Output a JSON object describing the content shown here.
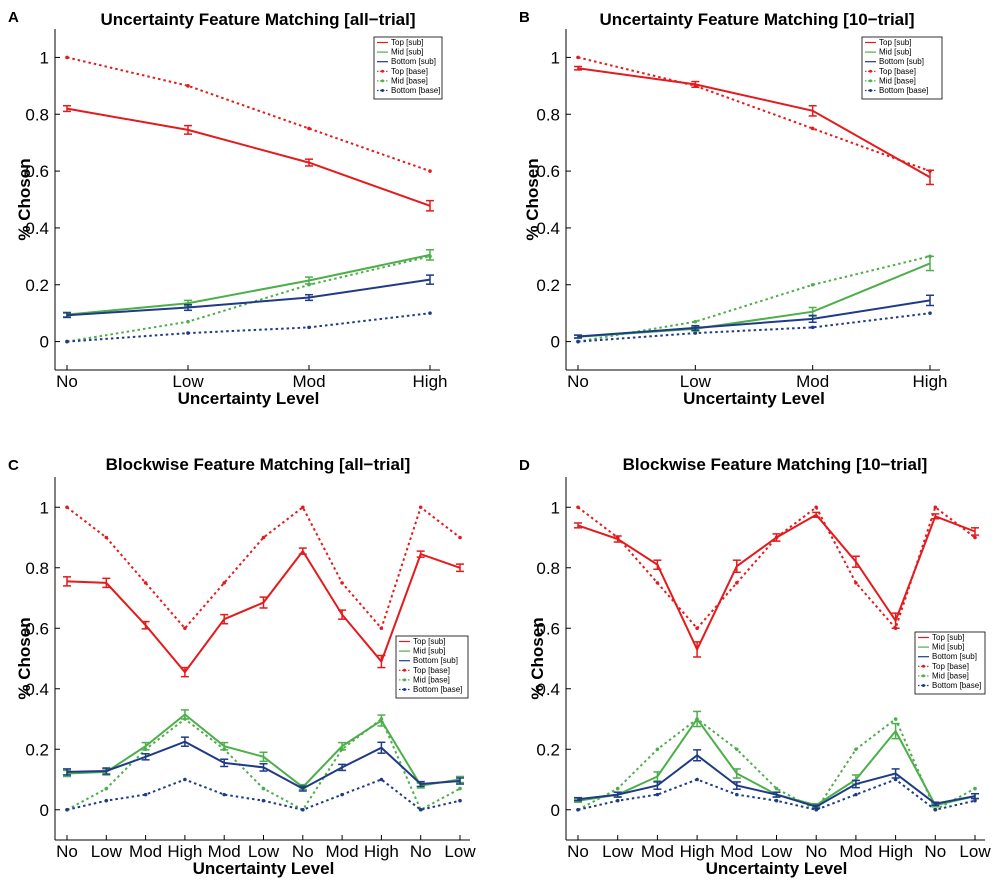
{
  "chart_data": [
    {
      "panel": "A",
      "type": "line",
      "title": "Uncertainty Feature Matching [all−trial]",
      "xlabel": "Uncertainty Level",
      "ylabel": "% Chosen",
      "categories": [
        "No",
        "Low",
        "Mod",
        "High"
      ],
      "yticks": [
        "0",
        "0.2",
        "0.4",
        "0.6",
        "0.8",
        "1"
      ],
      "ylim": [
        -0.1,
        1.1
      ],
      "legend_position": "top-right",
      "series": [
        {
          "name": "Top [sub]",
          "color": "#e41a1c",
          "style": "solid",
          "values": [
            0.82,
            0.745,
            0.63,
            0.478
          ],
          "errors": [
            0.01,
            0.015,
            0.012,
            0.018
          ]
        },
        {
          "name": "Mid [sub]",
          "color": "#4daf4a",
          "style": "solid",
          "values": [
            0.095,
            0.135,
            0.215,
            0.305
          ],
          "errors": [
            0.008,
            0.01,
            0.012,
            0.018
          ]
        },
        {
          "name": "Bottom [sub]",
          "color": "#1f3b87",
          "style": "solid",
          "values": [
            0.093,
            0.12,
            0.155,
            0.218
          ],
          "errors": [
            0.008,
            0.01,
            0.01,
            0.016
          ]
        },
        {
          "name": "Top [base]",
          "color": "#e41a1c",
          "style": "dotted",
          "values": [
            1.0,
            0.9,
            0.75,
            0.6
          ]
        },
        {
          "name": "Mid [base]",
          "color": "#4daf4a",
          "style": "dotted",
          "values": [
            0.0,
            0.07,
            0.2,
            0.3
          ]
        },
        {
          "name": "Bottom [base]",
          "color": "#1f3b87",
          "style": "dotted",
          "values": [
            0.0,
            0.03,
            0.05,
            0.1
          ]
        }
      ]
    },
    {
      "panel": "B",
      "type": "line",
      "title": "Uncertainty Feature Matching [10−trial]",
      "xlabel": "Uncertainty Level",
      "ylabel": "% Chosen",
      "categories": [
        "No",
        "Low",
        "Mod",
        "High"
      ],
      "yticks": [
        "0",
        "0.2",
        "0.4",
        "0.6",
        "0.8",
        "1"
      ],
      "ylim": [
        -0.1,
        1.1
      ],
      "legend_position": "top-right",
      "series": [
        {
          "name": "Top [sub]",
          "color": "#e41a1c",
          "style": "solid",
          "values": [
            0.962,
            0.905,
            0.812,
            0.578
          ],
          "errors": [
            0.006,
            0.01,
            0.018,
            0.025
          ]
        },
        {
          "name": "Mid [sub]",
          "color": "#4daf4a",
          "style": "solid",
          "values": [
            0.017,
            0.045,
            0.105,
            0.275
          ],
          "errors": [
            0.005,
            0.008,
            0.015,
            0.025
          ]
        },
        {
          "name": "Bottom [sub]",
          "color": "#1f3b87",
          "style": "solid",
          "values": [
            0.018,
            0.048,
            0.08,
            0.145
          ],
          "errors": [
            0.005,
            0.008,
            0.012,
            0.018
          ]
        },
        {
          "name": "Top [base]",
          "color": "#e41a1c",
          "style": "dotted",
          "values": [
            1.0,
            0.9,
            0.75,
            0.6
          ]
        },
        {
          "name": "Mid [base]",
          "color": "#4daf4a",
          "style": "dotted",
          "values": [
            0.0,
            0.07,
            0.2,
            0.3
          ]
        },
        {
          "name": "Bottom [base]",
          "color": "#1f3b87",
          "style": "dotted",
          "values": [
            0.0,
            0.03,
            0.05,
            0.1
          ]
        }
      ]
    },
    {
      "panel": "C",
      "type": "line",
      "title": "Blockwise Feature Matching [all−trial]",
      "xlabel": "Uncertainty Level",
      "ylabel": "% Chosen",
      "categories": [
        "No",
        "Low",
        "Mod",
        "High",
        "Mod",
        "Low",
        "No",
        "Mod",
        "High",
        "No",
        "Low"
      ],
      "yticks": [
        "0",
        "0.2",
        "0.4",
        "0.6",
        "0.8",
        "1"
      ],
      "ylim": [
        -0.1,
        1.1
      ],
      "legend_position": "center-right",
      "series": [
        {
          "name": "Top [sub]",
          "color": "#e41a1c",
          "style": "solid",
          "values": [
            0.755,
            0.75,
            0.61,
            0.455,
            0.63,
            0.685,
            0.855,
            0.645,
            0.49,
            0.845,
            0.8
          ],
          "errors": [
            0.015,
            0.015,
            0.012,
            0.015,
            0.015,
            0.018,
            0.01,
            0.015,
            0.02,
            0.01,
            0.012
          ]
        },
        {
          "name": "Mid [sub]",
          "color": "#4daf4a",
          "style": "solid",
          "values": [
            0.12,
            0.125,
            0.21,
            0.315,
            0.21,
            0.175,
            0.075,
            0.21,
            0.295,
            0.08,
            0.1
          ],
          "errors": [
            0.01,
            0.01,
            0.012,
            0.015,
            0.012,
            0.015,
            0.008,
            0.012,
            0.018,
            0.008,
            0.01
          ]
        },
        {
          "name": "Bottom [sub]",
          "color": "#1f3b87",
          "style": "solid",
          "values": [
            0.125,
            0.128,
            0.175,
            0.225,
            0.155,
            0.14,
            0.07,
            0.14,
            0.205,
            0.085,
            0.095
          ],
          "errors": [
            0.01,
            0.01,
            0.01,
            0.015,
            0.012,
            0.012,
            0.008,
            0.01,
            0.018,
            0.008,
            0.01
          ]
        },
        {
          "name": "Top [base]",
          "color": "#e41a1c",
          "style": "dotted",
          "values": [
            1.0,
            0.9,
            0.75,
            0.6,
            0.75,
            0.9,
            1.0,
            0.75,
            0.6,
            1.0,
            0.9
          ]
        },
        {
          "name": "Mid [base]",
          "color": "#4daf4a",
          "style": "dotted",
          "values": [
            0.0,
            0.07,
            0.2,
            0.3,
            0.2,
            0.07,
            0.0,
            0.2,
            0.3,
            0.0,
            0.07
          ]
        },
        {
          "name": "Bottom [base]",
          "color": "#1f3b87",
          "style": "dotted",
          "values": [
            0.0,
            0.03,
            0.05,
            0.1,
            0.05,
            0.03,
            0.0,
            0.05,
            0.1,
            0.0,
            0.03
          ]
        }
      ]
    },
    {
      "panel": "D",
      "type": "line",
      "title": "Blockwise Feature Matching [10−trial]",
      "xlabel": "Uncertainty Level",
      "ylabel": "% Chosen",
      "categories": [
        "No",
        "Low",
        "Mod",
        "High",
        "Mod",
        "Low",
        "No",
        "Mod",
        "High",
        "No",
        "Low"
      ],
      "yticks": [
        "0",
        "0.2",
        "0.4",
        "0.6",
        "0.8",
        "1"
      ],
      "ylim": [
        -0.1,
        1.1
      ],
      "legend_position": "center-right",
      "series": [
        {
          "name": "Top [sub]",
          "color": "#e41a1c",
          "style": "solid",
          "values": [
            0.94,
            0.895,
            0.81,
            0.53,
            0.805,
            0.9,
            0.975,
            0.82,
            0.625,
            0.97,
            0.92
          ],
          "errors": [
            0.008,
            0.01,
            0.015,
            0.025,
            0.02,
            0.012,
            0.008,
            0.018,
            0.025,
            0.008,
            0.012
          ]
        },
        {
          "name": "Mid [sub]",
          "color": "#4daf4a",
          "style": "solid",
          "values": [
            0.03,
            0.05,
            0.11,
            0.3,
            0.12,
            0.05,
            0.015,
            0.1,
            0.26,
            0.015,
            0.045
          ],
          "errors": [
            0.005,
            0.008,
            0.015,
            0.025,
            0.015,
            0.008,
            0.005,
            0.015,
            0.025,
            0.005,
            0.008
          ]
        },
        {
          "name": "Bottom [sub]",
          "color": "#1f3b87",
          "style": "solid",
          "values": [
            0.035,
            0.05,
            0.08,
            0.18,
            0.08,
            0.05,
            0.01,
            0.085,
            0.12,
            0.02,
            0.045
          ],
          "errors": [
            0.005,
            0.008,
            0.012,
            0.018,
            0.012,
            0.008,
            0.005,
            0.012,
            0.015,
            0.005,
            0.008
          ]
        },
        {
          "name": "Top [base]",
          "color": "#e41a1c",
          "style": "dotted",
          "values": [
            1.0,
            0.9,
            0.75,
            0.6,
            0.75,
            0.9,
            1.0,
            0.75,
            0.6,
            1.0,
            0.9
          ]
        },
        {
          "name": "Mid [base]",
          "color": "#4daf4a",
          "style": "dotted",
          "values": [
            0.0,
            0.07,
            0.2,
            0.3,
            0.2,
            0.07,
            0.0,
            0.2,
            0.3,
            0.0,
            0.07
          ]
        },
        {
          "name": "Bottom [base]",
          "color": "#1f3b87",
          "style": "dotted",
          "values": [
            0.0,
            0.03,
            0.05,
            0.1,
            0.05,
            0.03,
            0.0,
            0.05,
            0.1,
            0.0,
            0.03
          ]
        }
      ]
    }
  ]
}
